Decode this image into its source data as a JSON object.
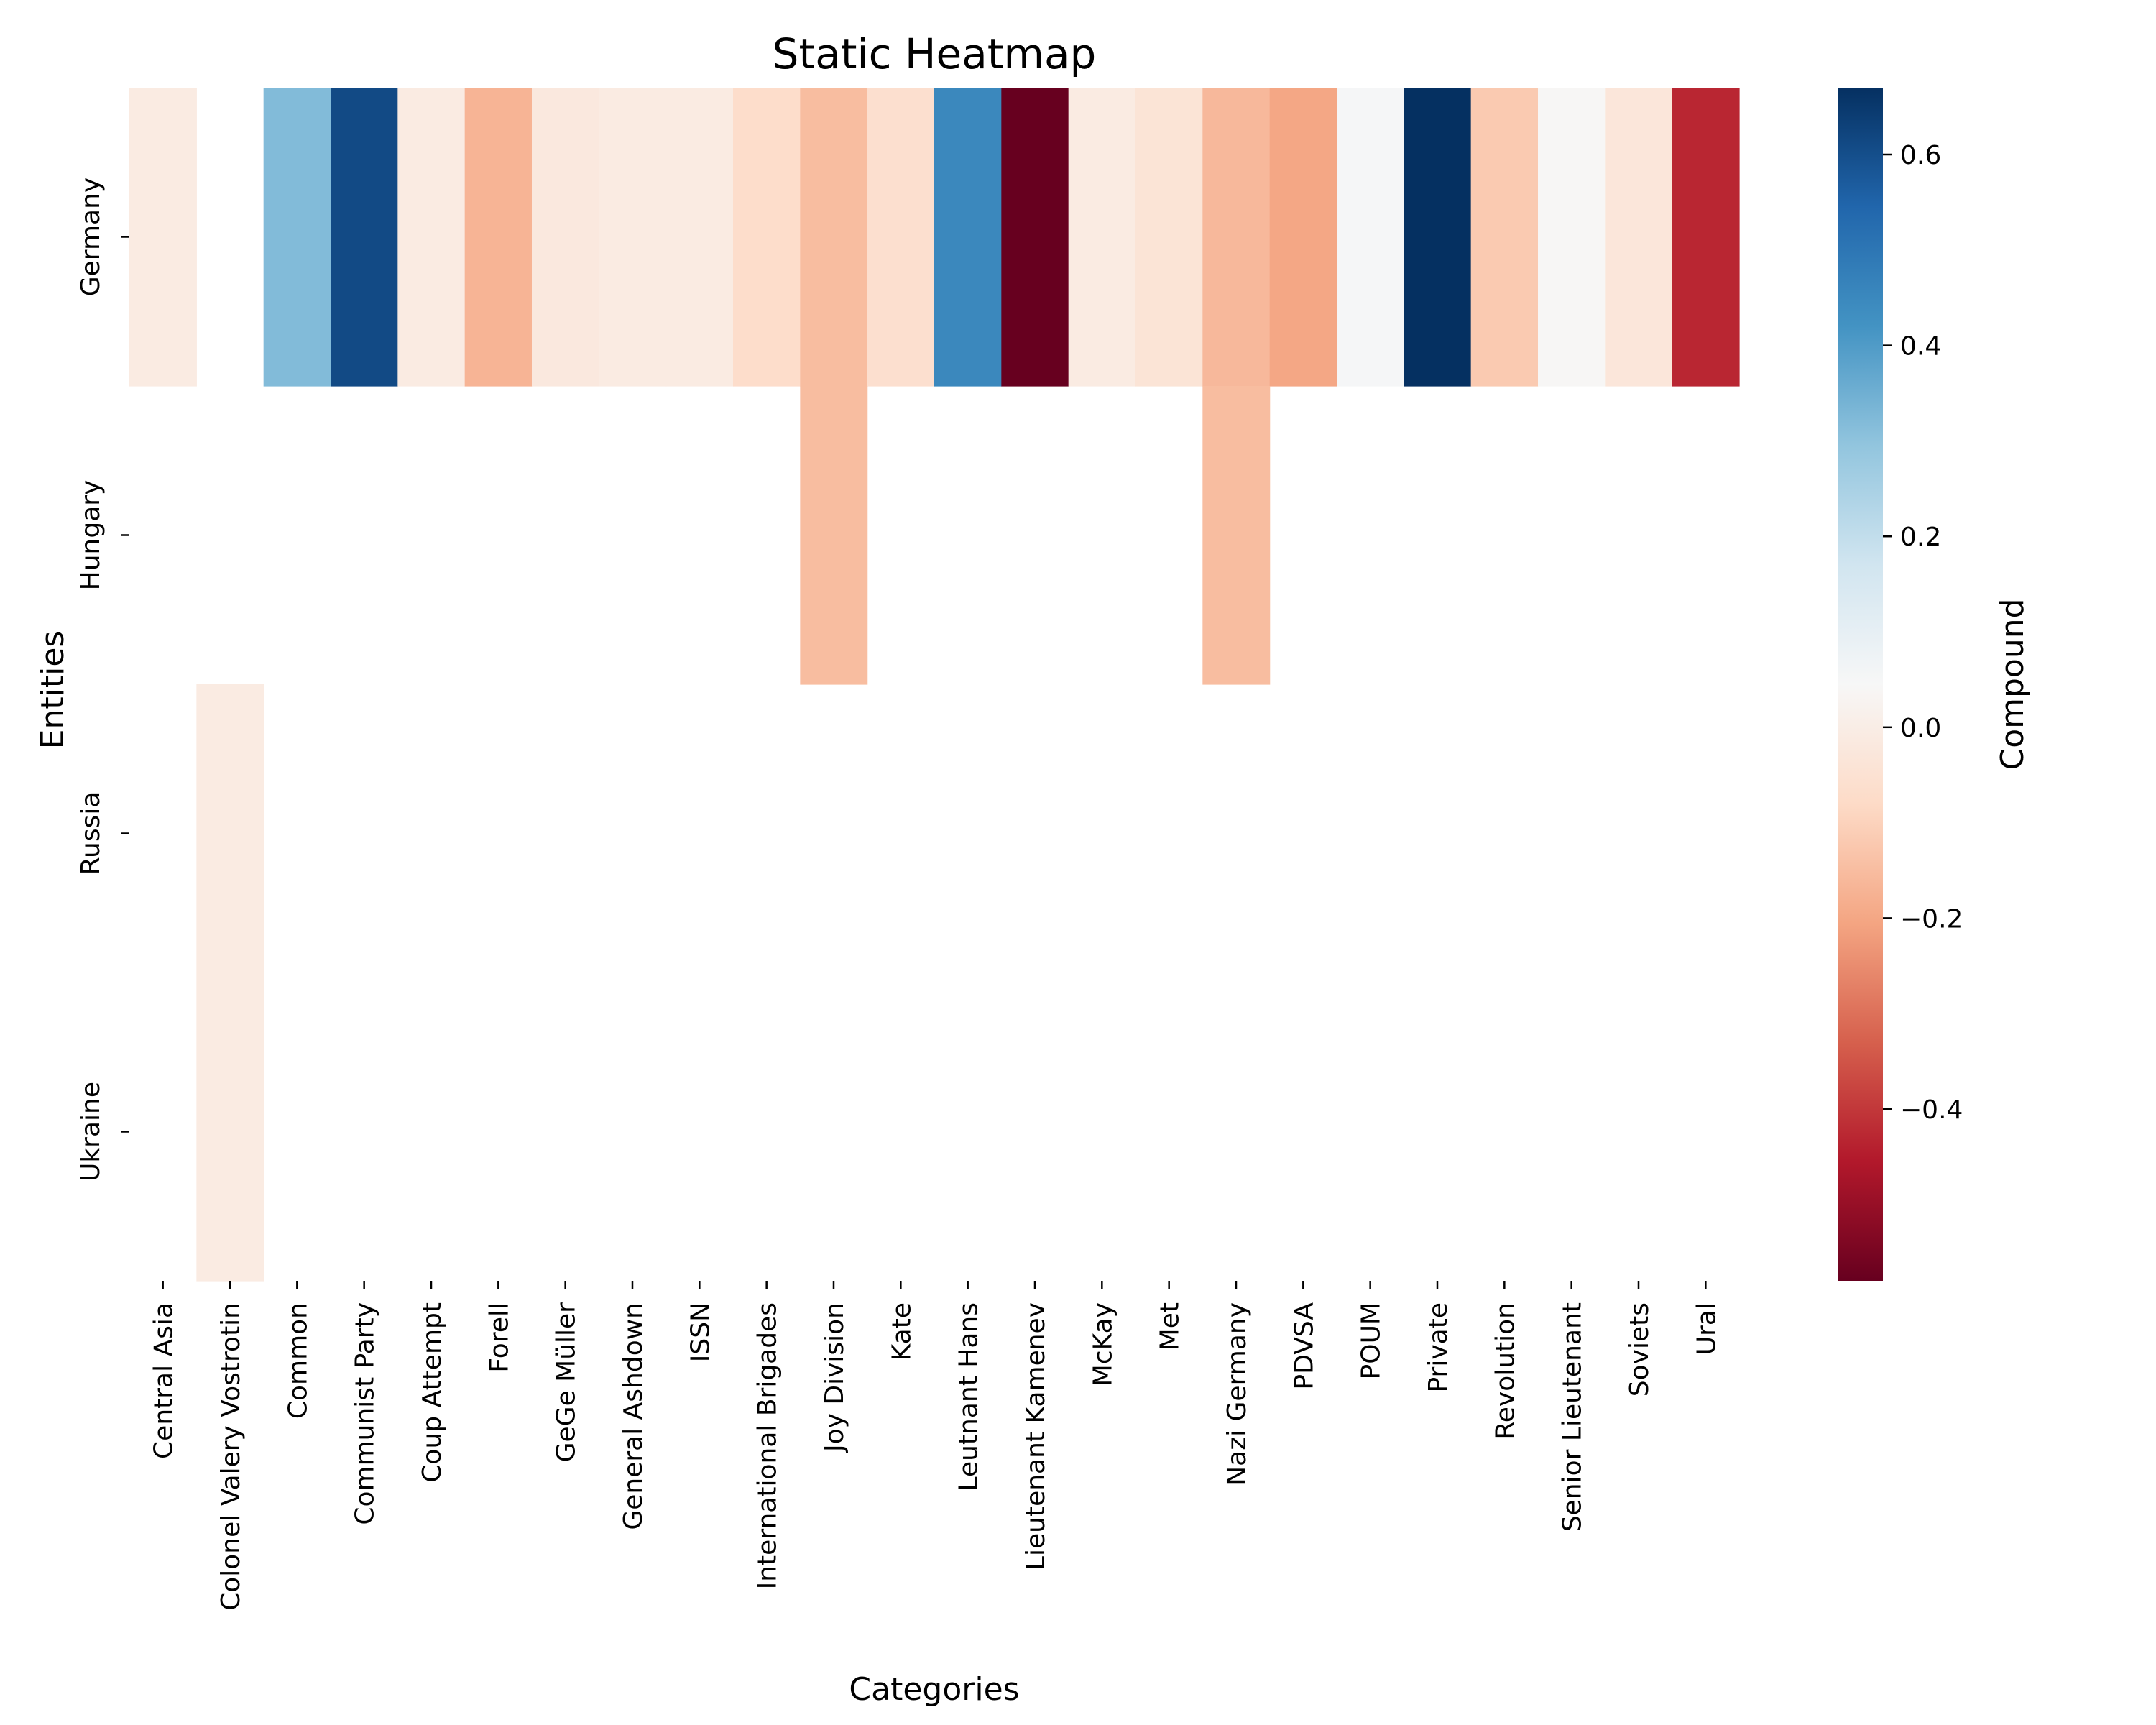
{
  "chart_data": {
    "type": "heatmap",
    "title": "Static Heatmap",
    "xlabel": "Categories",
    "ylabel": "Entities",
    "colorbar_label": "Compound",
    "colormap": "RdBu",
    "color_range": [
      -0.58,
      0.67
    ],
    "colorbar_ticks": [
      -0.4,
      -0.2,
      0.0,
      0.2,
      0.4,
      0.6
    ],
    "colorbar_tick_labels": [
      "−0.4",
      "−0.2",
      "0.0",
      "0.2",
      "0.4",
      "0.6"
    ],
    "rows": [
      "Germany",
      "Hungary",
      "Russia",
      "Ukraine"
    ],
    "columns": [
      "Central Asia",
      "Colonel Valery Vostrotin",
      "Common",
      "Communist Party",
      "Coup Attempt",
      "Forell",
      "GeGe Müller",
      "General Ashdown",
      "ISSN",
      "International Brigades",
      "Joy Division",
      "Kate",
      "Leutnant Hans",
      "Lieutenant Kamenev",
      "McKay",
      "Met",
      "Nazi Germany",
      "PDVSA",
      "POUM",
      "Private",
      "Revolution",
      "Senior Lieutenant",
      "Soviets",
      "Ural"
    ],
    "values": [
      [
        -0.01,
        null,
        0.32,
        0.61,
        -0.01,
        -0.17,
        -0.02,
        -0.01,
        -0.01,
        -0.07,
        -0.15,
        -0.06,
        0.45,
        -0.58,
        -0.01,
        -0.04,
        -0.16,
        -0.2,
        0.05,
        0.67,
        -0.12,
        0.04,
        -0.03,
        -0.43
      ],
      [
        null,
        null,
        null,
        null,
        null,
        null,
        null,
        null,
        null,
        null,
        -0.15,
        null,
        null,
        null,
        null,
        null,
        -0.15,
        null,
        null,
        null,
        null,
        null,
        null,
        null
      ],
      [
        null,
        -0.01,
        null,
        null,
        null,
        null,
        null,
        null,
        null,
        null,
        null,
        null,
        null,
        null,
        null,
        null,
        null,
        null,
        null,
        null,
        null,
        null,
        null,
        null
      ],
      [
        null,
        -0.01,
        null,
        null,
        null,
        null,
        null,
        null,
        null,
        null,
        null,
        null,
        null,
        null,
        null,
        null,
        null,
        null,
        null,
        null,
        null,
        null,
        null,
        null
      ]
    ]
  }
}
